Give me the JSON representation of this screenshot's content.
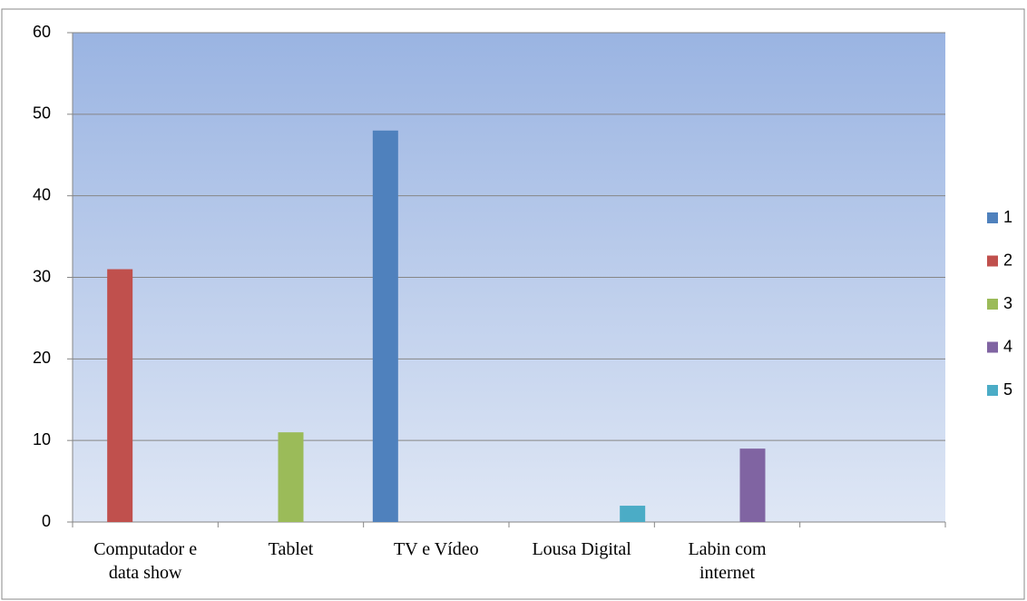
{
  "chart_data": {
    "type": "bar",
    "categories": [
      "Computador e data show",
      "Tablet",
      "TV e Vídeo",
      "Lousa Digital",
      "Labin com internet",
      null
    ],
    "series": [
      {
        "name": "1",
        "color": "#4f81bd",
        "values": [
          null,
          null,
          48,
          null,
          null,
          null
        ]
      },
      {
        "name": "2",
        "color": "#c0504d",
        "values": [
          31,
          null,
          null,
          null,
          null,
          null
        ]
      },
      {
        "name": "3",
        "color": "#9bbb59",
        "values": [
          null,
          11,
          null,
          null,
          null,
          null
        ]
      },
      {
        "name": "4",
        "color": "#8064a2",
        "values": [
          null,
          null,
          null,
          null,
          9,
          null
        ]
      },
      {
        "name": "5",
        "color": "#4bacc6",
        "values": [
          null,
          null,
          null,
          2,
          null,
          null
        ]
      }
    ],
    "ylim": [
      0,
      60
    ],
    "yticks": [
      0,
      10,
      20,
      30,
      40,
      50,
      60
    ],
    "grid": true,
    "legend": "right"
  }
}
